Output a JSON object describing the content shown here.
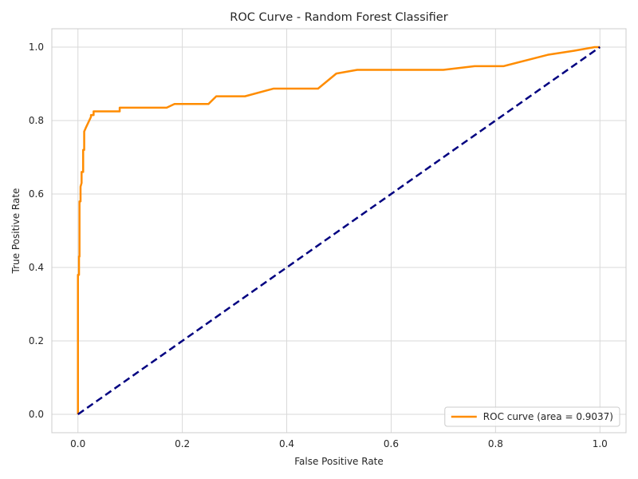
{
  "chart_data": {
    "type": "line",
    "title": "ROC Curve - Random Forest Classifier",
    "xlabel": "False Positive Rate",
    "ylabel": "True Positive Rate",
    "xlim": [
      -0.05,
      1.05
    ],
    "ylim": [
      -0.05,
      1.05
    ],
    "x_ticks": [
      0.0,
      0.2,
      0.4,
      0.6,
      0.8,
      1.0
    ],
    "x_tick_labels": [
      "0.0",
      "0.2",
      "0.4",
      "0.6",
      "0.8",
      "1.0"
    ],
    "y_ticks": [
      0.0,
      0.2,
      0.4,
      0.6,
      0.8,
      1.0
    ],
    "y_tick_labels": [
      "0.0",
      "0.2",
      "0.4",
      "0.6",
      "0.8",
      "1.0"
    ],
    "grid": true,
    "legend_placement": "lower-right",
    "series": [
      {
        "name": "ROC curve (area = 0.9037)",
        "color": "#ff8c00",
        "style": "solid",
        "x": [
          0.0,
          0.0,
          0.002,
          0.002,
          0.003,
          0.003,
          0.005,
          0.005,
          0.007,
          0.007,
          0.01,
          0.01,
          0.012,
          0.012,
          0.015,
          0.02,
          0.025,
          0.025,
          0.03,
          0.03,
          0.08,
          0.08,
          0.17,
          0.185,
          0.25,
          0.265,
          0.32,
          0.375,
          0.46,
          0.495,
          0.535,
          0.7,
          0.76,
          0.815,
          0.9,
          0.95,
          0.99,
          1.0
        ],
        "y": [
          0.0,
          0.38,
          0.38,
          0.43,
          0.43,
          0.58,
          0.58,
          0.62,
          0.63,
          0.66,
          0.66,
          0.72,
          0.72,
          0.77,
          0.78,
          0.795,
          0.81,
          0.815,
          0.815,
          0.825,
          0.825,
          0.835,
          0.835,
          0.845,
          0.845,
          0.866,
          0.866,
          0.887,
          0.887,
          0.928,
          0.938,
          0.938,
          0.948,
          0.948,
          0.979,
          0.99,
          1.0,
          1.0
        ]
      },
      {
        "color": "#000080",
        "style": "dashed",
        "x": [
          0.0,
          1.0
        ],
        "y": [
          0.0,
          1.0
        ]
      }
    ]
  }
}
